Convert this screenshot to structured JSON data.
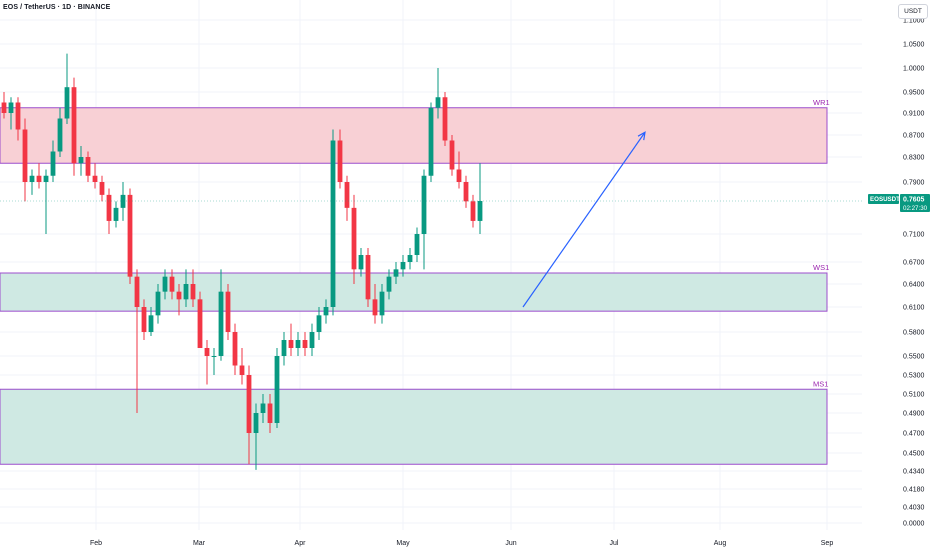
{
  "header": {
    "title": "EOS / TetherUS · 1D · BINANCE"
  },
  "currency_button": "USDT",
  "price_tag": {
    "symbol": "EOSUSDT",
    "price": "0.7605",
    "countdown": "02:27:30"
  },
  "colors": {
    "up": "#089981",
    "down": "#f23645",
    "zone_text": "#9c27b0",
    "resistance_fill": "#f8d0d5",
    "support_fill": "#cfe9e3",
    "zone_border": "#9c4dcc",
    "arrow": "#2962ff",
    "tag_bg": "#089981"
  },
  "zones": [
    {
      "label": "WR1",
      "low": 0.82,
      "high": 0.92,
      "kind": "resistance"
    },
    {
      "label": "WS1",
      "low": 0.605,
      "high": 0.655,
      "kind": "support"
    },
    {
      "label": "MS1",
      "low": 0.44,
      "high": 0.515,
      "kind": "support"
    }
  ],
  "chart_data": {
    "type": "candlestick",
    "x_axis_labels": [
      "Feb",
      "Mar",
      "Apr",
      "May",
      "Jun",
      "Jul",
      "Aug",
      "Sep"
    ],
    "y_axis_labels": [
      "1.1000",
      "1.0500",
      "1.0000",
      "0.9500",
      "0.9100",
      "0.8700",
      "0.8300",
      "0.7900",
      "0.7100",
      "0.6700",
      "0.6400",
      "0.6100",
      "0.5800",
      "0.5500",
      "0.5300",
      "0.5100",
      "0.4900",
      "0.4700",
      "0.4500",
      "0.4340",
      "0.4180",
      "0.4030",
      "0.0000"
    ],
    "y_scale": "non-linear (tick labels as shown)",
    "last_price": 0.7605,
    "projection_arrow": {
      "from": {
        "date": "May 28",
        "price": 0.61
      },
      "to": {
        "date": "Jul 11",
        "price": 0.875
      }
    },
    "candles_approx": [
      {
        "o": 0.93,
        "h": 0.95,
        "l": 0.9,
        "c": 0.91
      },
      {
        "o": 0.91,
        "h": 0.94,
        "l": 0.88,
        "c": 0.93
      },
      {
        "o": 0.93,
        "h": 0.94,
        "l": 0.86,
        "c": 0.88
      },
      {
        "o": 0.88,
        "h": 0.9,
        "l": 0.76,
        "c": 0.79
      },
      {
        "o": 0.79,
        "h": 0.81,
        "l": 0.77,
        "c": 0.8
      },
      {
        "o": 0.8,
        "h": 0.82,
        "l": 0.78,
        "c": 0.79
      },
      {
        "o": 0.79,
        "h": 0.81,
        "l": 0.71,
        "c": 0.8
      },
      {
        "o": 0.8,
        "h": 0.86,
        "l": 0.79,
        "c": 0.84
      },
      {
        "o": 0.84,
        "h": 0.92,
        "l": 0.83,
        "c": 0.9
      },
      {
        "o": 0.9,
        "h": 1.03,
        "l": 0.89,
        "c": 0.96
      },
      {
        "o": 0.96,
        "h": 0.98,
        "l": 0.8,
        "c": 0.82
      },
      {
        "o": 0.82,
        "h": 0.85,
        "l": 0.8,
        "c": 0.83
      },
      {
        "o": 0.83,
        "h": 0.84,
        "l": 0.79,
        "c": 0.8
      },
      {
        "o": 0.8,
        "h": 0.82,
        "l": 0.78,
        "c": 0.79
      },
      {
        "o": 0.79,
        "h": 0.8,
        "l": 0.76,
        "c": 0.77
      },
      {
        "o": 0.77,
        "h": 0.78,
        "l": 0.71,
        "c": 0.73
      },
      {
        "o": 0.73,
        "h": 0.76,
        "l": 0.72,
        "c": 0.75
      },
      {
        "o": 0.75,
        "h": 0.79,
        "l": 0.73,
        "c": 0.77
      },
      {
        "o": 0.77,
        "h": 0.78,
        "l": 0.64,
        "c": 0.65
      },
      {
        "o": 0.65,
        "h": 0.66,
        "l": 0.49,
        "c": 0.61
      },
      {
        "o": 0.61,
        "h": 0.62,
        "l": 0.57,
        "c": 0.58
      },
      {
        "o": 0.58,
        "h": 0.61,
        "l": 0.575,
        "c": 0.6
      },
      {
        "o": 0.6,
        "h": 0.64,
        "l": 0.59,
        "c": 0.63
      },
      {
        "o": 0.63,
        "h": 0.66,
        "l": 0.62,
        "c": 0.65
      },
      {
        "o": 0.65,
        "h": 0.66,
        "l": 0.62,
        "c": 0.63
      },
      {
        "o": 0.63,
        "h": 0.64,
        "l": 0.6,
        "c": 0.62
      },
      {
        "o": 0.62,
        "h": 0.66,
        "l": 0.61,
        "c": 0.64
      },
      {
        "o": 0.64,
        "h": 0.66,
        "l": 0.61,
        "c": 0.62
      },
      {
        "o": 0.62,
        "h": 0.63,
        "l": 0.56,
        "c": 0.56
      },
      {
        "o": 0.56,
        "h": 0.57,
        "l": 0.52,
        "c": 0.55
      },
      {
        "o": 0.55,
        "h": 0.56,
        "l": 0.53,
        "c": 0.55
      },
      {
        "o": 0.55,
        "h": 0.66,
        "l": 0.545,
        "c": 0.63
      },
      {
        "o": 0.63,
        "h": 0.64,
        "l": 0.57,
        "c": 0.58
      },
      {
        "o": 0.58,
        "h": 0.59,
        "l": 0.53,
        "c": 0.54
      },
      {
        "o": 0.54,
        "h": 0.56,
        "l": 0.52,
        "c": 0.53
      },
      {
        "o": 0.53,
        "h": 0.54,
        "l": 0.44,
        "c": 0.47
      },
      {
        "o": 0.47,
        "h": 0.5,
        "l": 0.435,
        "c": 0.49
      },
      {
        "o": 0.49,
        "h": 0.51,
        "l": 0.48,
        "c": 0.5
      },
      {
        "o": 0.5,
        "h": 0.51,
        "l": 0.47,
        "c": 0.48
      },
      {
        "o": 0.48,
        "h": 0.56,
        "l": 0.475,
        "c": 0.55
      },
      {
        "o": 0.55,
        "h": 0.58,
        "l": 0.54,
        "c": 0.57
      },
      {
        "o": 0.57,
        "h": 0.59,
        "l": 0.55,
        "c": 0.56
      },
      {
        "o": 0.56,
        "h": 0.58,
        "l": 0.55,
        "c": 0.57
      },
      {
        "o": 0.57,
        "h": 0.58,
        "l": 0.55,
        "c": 0.56
      },
      {
        "o": 0.56,
        "h": 0.59,
        "l": 0.55,
        "c": 0.58
      },
      {
        "o": 0.58,
        "h": 0.61,
        "l": 0.57,
        "c": 0.6
      },
      {
        "o": 0.6,
        "h": 0.62,
        "l": 0.59,
        "c": 0.61
      },
      {
        "o": 0.61,
        "h": 0.88,
        "l": 0.6,
        "c": 0.86
      },
      {
        "o": 0.86,
        "h": 0.88,
        "l": 0.78,
        "c": 0.79
      },
      {
        "o": 0.79,
        "h": 0.8,
        "l": 0.73,
        "c": 0.75
      },
      {
        "o": 0.75,
        "h": 0.77,
        "l": 0.64,
        "c": 0.66
      },
      {
        "o": 0.66,
        "h": 0.69,
        "l": 0.65,
        "c": 0.68
      },
      {
        "o": 0.68,
        "h": 0.69,
        "l": 0.61,
        "c": 0.62
      },
      {
        "o": 0.62,
        "h": 0.64,
        "l": 0.59,
        "c": 0.6
      },
      {
        "o": 0.6,
        "h": 0.64,
        "l": 0.59,
        "c": 0.63
      },
      {
        "o": 0.63,
        "h": 0.66,
        "l": 0.62,
        "c": 0.65
      },
      {
        "o": 0.65,
        "h": 0.67,
        "l": 0.64,
        "c": 0.66
      },
      {
        "o": 0.66,
        "h": 0.68,
        "l": 0.65,
        "c": 0.67
      },
      {
        "o": 0.67,
        "h": 0.69,
        "l": 0.66,
        "c": 0.68
      },
      {
        "o": 0.68,
        "h": 0.72,
        "l": 0.67,
        "c": 0.71
      },
      {
        "o": 0.71,
        "h": 0.81,
        "l": 0.66,
        "c": 0.8
      },
      {
        "o": 0.8,
        "h": 0.93,
        "l": 0.79,
        "c": 0.92
      },
      {
        "o": 0.92,
        "h": 1.0,
        "l": 0.9,
        "c": 0.94
      },
      {
        "o": 0.94,
        "h": 0.95,
        "l": 0.85,
        "c": 0.86
      },
      {
        "o": 0.86,
        "h": 0.87,
        "l": 0.8,
        "c": 0.81
      },
      {
        "o": 0.81,
        "h": 0.84,
        "l": 0.78,
        "c": 0.79
      },
      {
        "o": 0.79,
        "h": 0.8,
        "l": 0.75,
        "c": 0.76
      },
      {
        "o": 0.76,
        "h": 0.77,
        "l": 0.72,
        "c": 0.73
      },
      {
        "o": 0.73,
        "h": 0.82,
        "l": 0.71,
        "c": 0.7605
      }
    ]
  }
}
